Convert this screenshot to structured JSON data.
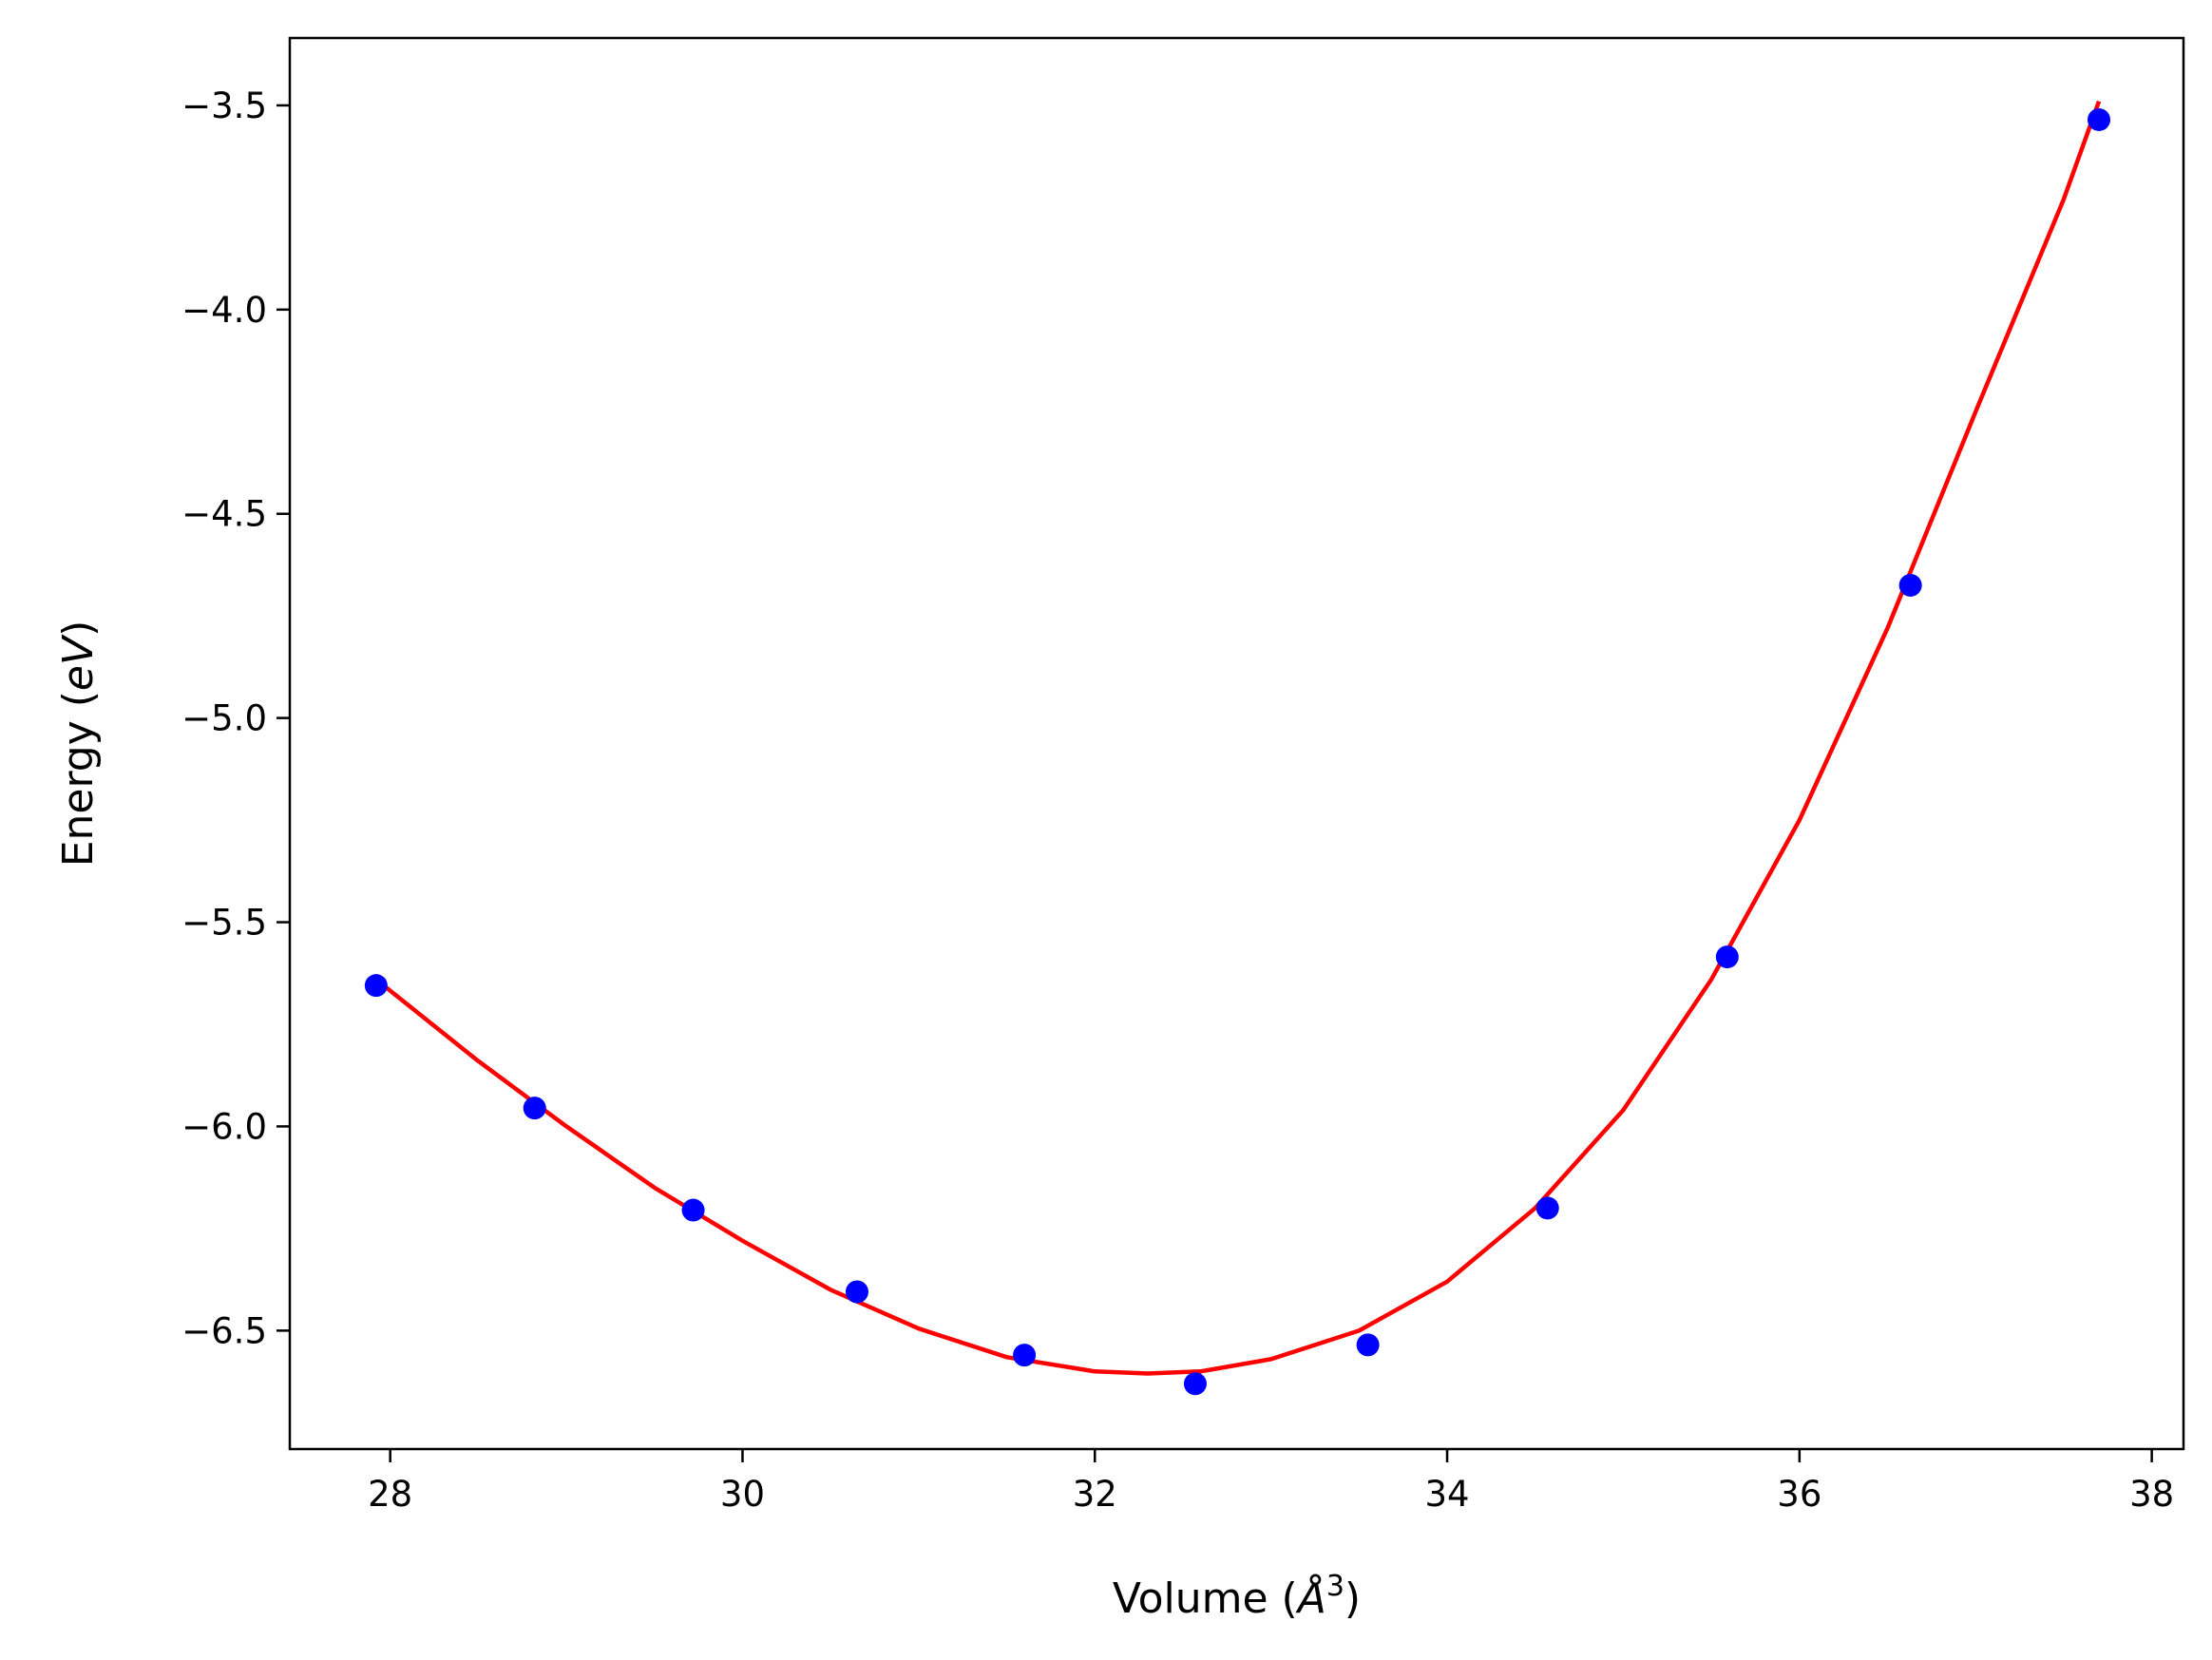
{
  "chart_data": {
    "type": "scatter",
    "title": "",
    "xlabel": {
      "prefix": "Volume (",
      "symbol": "Å",
      "superscript": "3",
      "suffix": ")"
    },
    "ylabel": {
      "prefix": "Energy (",
      "unit": "eV",
      "suffix": ")"
    },
    "xlim": [
      27.43,
      38.18
    ],
    "ylim": [
      -6.79,
      -3.335
    ],
    "xticks": [
      28,
      30,
      32,
      34,
      36,
      38
    ],
    "xtick_labels": [
      "28",
      "30",
      "32",
      "34",
      "36",
      "38"
    ],
    "yticks": [
      -6.5,
      -6.0,
      -5.5,
      -5.0,
      -4.5,
      -4.0,
      -3.5
    ],
    "ytick_labels": [
      "−6.5",
      "−6.0",
      "−5.5",
      "−5.0",
      "−4.5",
      "−4.0",
      "−3.5"
    ],
    "grid": false,
    "series": [
      {
        "kind": "scatter",
        "color": "#0000ff",
        "x": [
          27.92,
          28.82,
          29.72,
          30.65,
          31.6,
          32.57,
          33.55,
          34.57,
          35.59,
          36.63,
          37.7
        ],
        "y": [
          -5.655,
          -5.955,
          -6.205,
          -6.405,
          -6.56,
          -6.63,
          -6.535,
          -6.2,
          -5.585,
          -4.675,
          -3.535
        ]
      },
      {
        "kind": "line",
        "color": "#ff0000",
        "x": [
          27.92,
          28.5,
          29.0,
          29.5,
          30.0,
          30.5,
          31.0,
          31.5,
          32.0,
          32.3,
          32.6,
          33.0,
          33.5,
          34.0,
          34.5,
          35.0,
          35.5,
          36.0,
          36.5,
          37.0,
          37.5,
          37.7
        ],
        "y": [
          -5.64,
          -5.84,
          -6.0,
          -6.15,
          -6.28,
          -6.4,
          -6.495,
          -6.565,
          -6.6,
          -6.605,
          -6.6,
          -6.57,
          -6.5,
          -6.38,
          -6.2,
          -5.96,
          -5.64,
          -5.25,
          -4.78,
          -4.25,
          -3.73,
          -3.49
        ]
      }
    ]
  }
}
